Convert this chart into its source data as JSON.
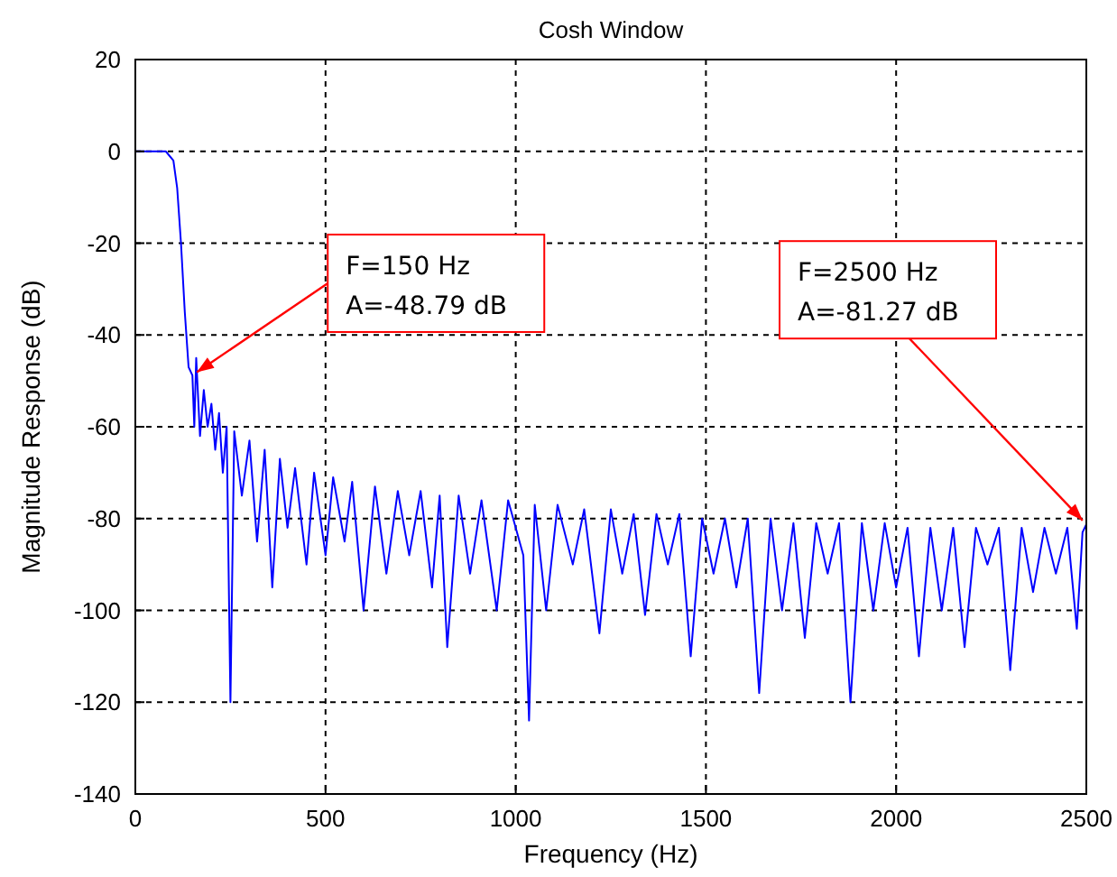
{
  "chart_data": {
    "type": "line",
    "title": "Cosh Window",
    "xlabel": "Frequency (Hz)",
    "ylabel": "Magnitude Response (dB)",
    "xlim": [
      0,
      2500
    ],
    "xticks": [
      0,
      500,
      1000,
      1500,
      2000,
      2500
    ],
    "ylim": [
      -140,
      20
    ],
    "yticks": [
      -140,
      -120,
      -100,
      -80,
      -60,
      -40,
      -20,
      0,
      20
    ],
    "grid": true,
    "line_style": "solid",
    "annotations": [
      {
        "text": "F=150 Hz\nA=-48.79 dB",
        "x": 150,
        "y": -48.79
      },
      {
        "text": "F=2500 Hz\nA=-81.27 dB",
        "x": 2500,
        "y": -81.27
      }
    ],
    "series": [
      {
        "color": "#0000ff",
        "x": [
          0,
          80,
          100,
          110,
          120,
          130,
          140,
          150,
          155,
          160,
          170,
          180,
          190,
          200,
          210,
          220,
          230,
          240,
          250,
          260,
          280,
          300,
          320,
          340,
          360,
          380,
          400,
          420,
          450,
          470,
          500,
          520,
          550,
          570,
          600,
          630,
          660,
          690,
          720,
          750,
          780,
          800,
          820,
          850,
          880,
          910,
          950,
          980,
          1020,
          1035,
          1050,
          1080,
          1110,
          1150,
          1180,
          1220,
          1250,
          1280,
          1310,
          1340,
          1370,
          1400,
          1430,
          1460,
          1490,
          1520,
          1550,
          1580,
          1610,
          1640,
          1670,
          1700,
          1730,
          1760,
          1790,
          1820,
          1850,
          1880,
          1910,
          1940,
          1970,
          2000,
          2030,
          2060,
          2090,
          2120,
          2150,
          2180,
          2210,
          2240,
          2270,
          2300,
          2330,
          2360,
          2390,
          2420,
          2450,
          2475,
          2490,
          2500
        ],
        "values": [
          0,
          0,
          -2,
          -8,
          -20,
          -35,
          -47,
          -48.79,
          -60,
          -45,
          -62,
          -52,
          -60,
          -55,
          -65,
          -57,
          -70,
          -60,
          -120,
          -61,
          -75,
          -63,
          -85,
          -65,
          -95,
          -67,
          -82,
          -69,
          -90,
          -70,
          -88,
          -71,
          -85,
          -72,
          -100,
          -73,
          -92,
          -74,
          -88,
          -74,
          -95,
          -75,
          -108,
          -75,
          -92,
          -76,
          -100,
          -76,
          -88,
          -124,
          -77,
          -100,
          -77,
          -90,
          -78,
          -105,
          -78,
          -92,
          -79,
          -101,
          -79,
          -90,
          -79,
          -110,
          -80,
          -92,
          -80,
          -95,
          -80,
          -118,
          -80,
          -100,
          -81,
          -106,
          -81,
          -92,
          -81,
          -120,
          -81,
          -100,
          -81,
          -95,
          -82,
          -110,
          -82,
          -100,
          -82,
          -108,
          -82,
          -90,
          -82,
          -113,
          -82,
          -96,
          -82,
          -92,
          -82,
          -104,
          -83,
          -81.27
        ]
      }
    ]
  }
}
